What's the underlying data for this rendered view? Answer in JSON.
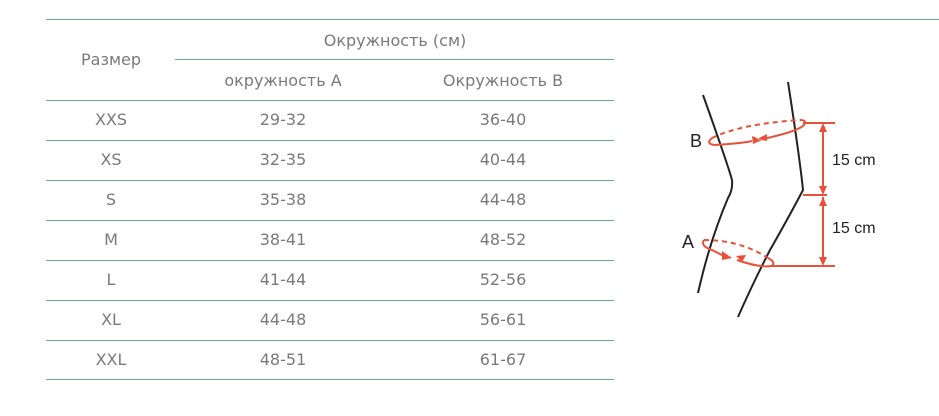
{
  "table": {
    "size_header": "Размер",
    "group_header": "Окружность (см)",
    "col_a": "окружность А",
    "col_b": "Окружность В",
    "rows": [
      {
        "size": "XXS",
        "a": "29-32",
        "b": "36-40"
      },
      {
        "size": "XS",
        "a": "32-35",
        "b": "40-44"
      },
      {
        "size": "S",
        "a": "35-38",
        "b": "44-48"
      },
      {
        "size": "M",
        "a": "38-41",
        "b": "48-52"
      },
      {
        "size": "L",
        "a": "41-44",
        "b": "52-56"
      },
      {
        "size": "XL",
        "a": "44-48",
        "b": "56-61"
      },
      {
        "size": "XXL",
        "a": "48-51",
        "b": "61-67"
      }
    ]
  },
  "diagram": {
    "label_b": "B",
    "label_a": "A",
    "dist_upper": "15 cm",
    "dist_lower": "15 cm",
    "accent": "#e8503a"
  }
}
